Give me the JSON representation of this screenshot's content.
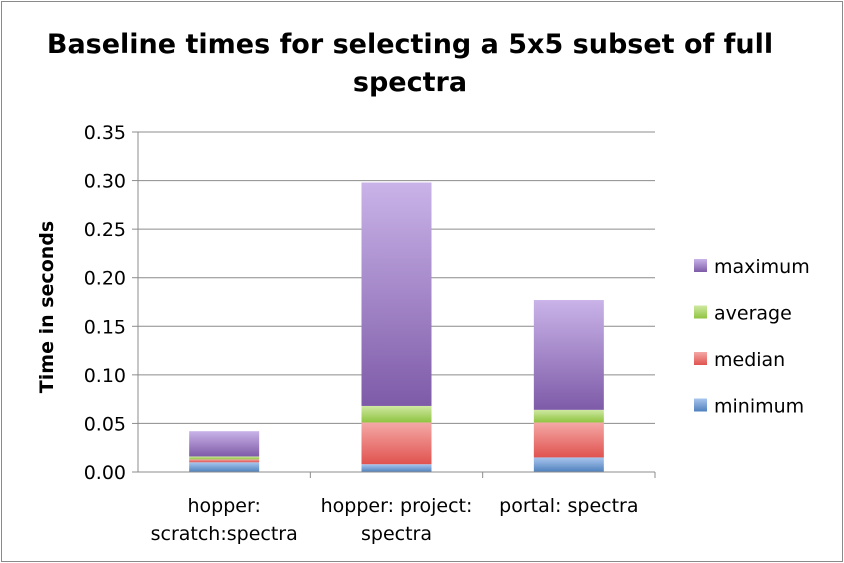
{
  "chart_data": {
    "type": "bar",
    "stacked": true,
    "title": "Baseline times for selecting a 5x5 subset of full spectra",
    "xlabel": "",
    "ylabel": "Time in seconds",
    "ylim": [
      0,
      0.35
    ],
    "yticks": [
      "0.00",
      "0.05",
      "0.10",
      "0.15",
      "0.20",
      "0.25",
      "0.30",
      "0.35"
    ],
    "categories": [
      [
        "hopper:",
        "scratch:spectra"
      ],
      [
        "hopper: project:",
        "spectra"
      ],
      [
        "portal: spectra"
      ]
    ],
    "series": [
      {
        "name": "minimum",
        "values": [
          0.01,
          0.008,
          0.015
        ],
        "color": "#4f81bd",
        "color_light": "#a9c6ee"
      },
      {
        "name": "median",
        "values": [
          0.003,
          0.043,
          0.036
        ],
        "color": "#e0534f",
        "color_light": "#f4a8a6"
      },
      {
        "name": "average",
        "values": [
          0.003,
          0.017,
          0.013
        ],
        "color": "#8fc340",
        "color_light": "#cfe9a2"
      },
      {
        "name": "maximum",
        "values": [
          0.026,
          0.23,
          0.113
        ],
        "color": "#7e5ba8",
        "color_light": "#c9b3e8"
      }
    ],
    "legend_order": [
      "maximum",
      "average",
      "median",
      "minimum"
    ],
    "legend_position": "right",
    "grid": true
  }
}
